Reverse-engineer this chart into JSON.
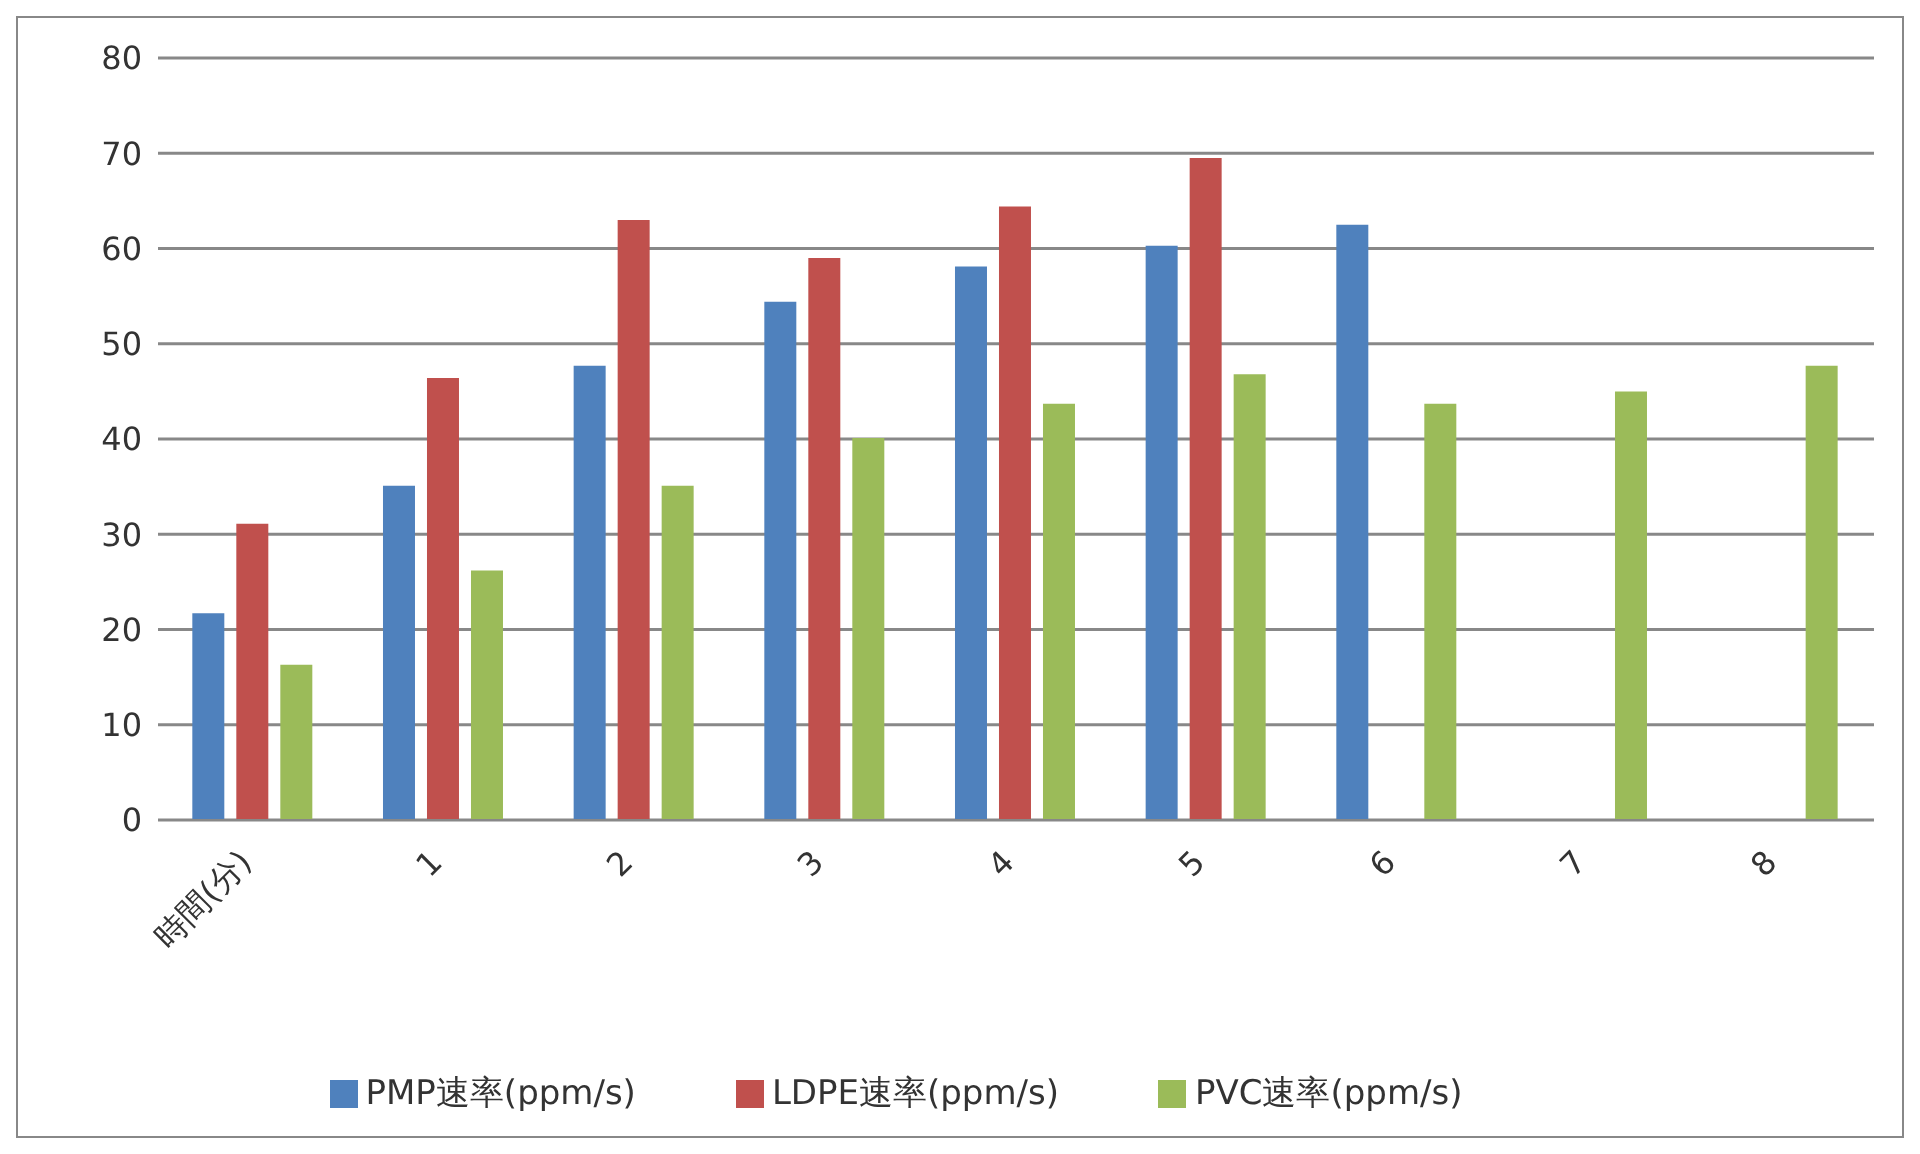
{
  "chart_data": {
    "type": "bar",
    "categories": [
      "時間(分)",
      "1",
      "2",
      "3",
      "4",
      "5",
      "6",
      "7",
      "8"
    ],
    "series": [
      {
        "name": "PMP速率(ppm/s)",
        "color": "#4f81bd",
        "values": [
          21.7,
          35.1,
          47.7,
          54.4,
          58.1,
          60.3,
          62.5,
          null,
          null
        ]
      },
      {
        "name": "LDPE速率(ppm/s)",
        "color": "#c0504d",
        "values": [
          31.1,
          46.4,
          63.0,
          59.0,
          64.4,
          69.5,
          null,
          null,
          null
        ]
      },
      {
        "name": "PVC速率(ppm/s)",
        "color": "#9bbb59",
        "values": [
          16.3,
          26.2,
          35.1,
          40.1,
          43.7,
          46.8,
          43.7,
          45.0,
          47.7
        ]
      }
    ],
    "ylim": [
      0,
      80
    ],
    "yticks": [
      0,
      10,
      20,
      30,
      40,
      50,
      60,
      70,
      80
    ],
    "grid": "y",
    "legend": "bottom"
  }
}
